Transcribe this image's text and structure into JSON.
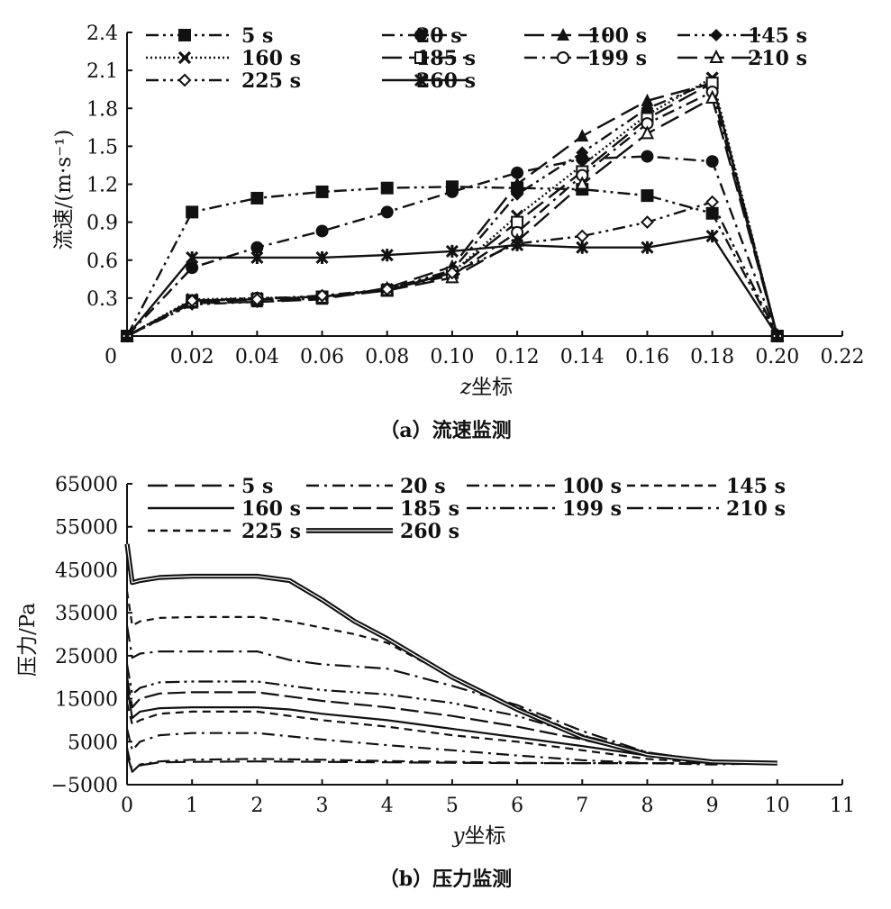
{
  "figure": {
    "caption_a": "（a）流速监测",
    "caption_b": "（b）压力监测"
  },
  "chart_data": [
    {
      "id": "a",
      "type": "line",
      "xlabel_var": "z",
      "xlabel_rest": "坐标",
      "ylabel": "流速/(m·s⁻¹)",
      "xlim": [
        0,
        0.22
      ],
      "ylim": [
        0,
        2.4
      ],
      "x_ticks": [
        0.02,
        0.04,
        0.06,
        0.08,
        0.1,
        0.12,
        0.14,
        0.16,
        0.18,
        0.2,
        0.22
      ],
      "x_tick_labels": [
        "0.02",
        "0.04",
        "0.06",
        "0.08",
        "0.10",
        "0.12",
        "0.14",
        "0.16",
        "0.18",
        "0.20",
        "0.22"
      ],
      "origin_label": "0",
      "y_ticks": [
        0.3,
        0.6,
        0.9,
        1.2,
        1.5,
        1.8,
        2.1,
        2.4
      ],
      "y_tick_labels": [
        "0.3",
        "0.6",
        "0.9",
        "1.2",
        "1.5",
        "1.8",
        "2.1",
        "2.4"
      ],
      "grid": false,
      "legend_position": "top",
      "x": [
        0,
        0.02,
        0.04,
        0.06,
        0.08,
        0.1,
        0.12,
        0.14,
        0.16,
        0.18,
        0.2
      ],
      "series": [
        {
          "name": "5 s",
          "marker": "square-filled",
          "dash": "dashdotdot",
          "values": [
            0,
            0.98,
            1.09,
            1.14,
            1.17,
            1.18,
            1.17,
            1.16,
            1.11,
            0.97,
            0
          ]
        },
        {
          "name": "20 s",
          "marker": "circle-filled",
          "dash": "dashdot",
          "values": [
            0,
            0.54,
            0.7,
            0.83,
            0.98,
            1.14,
            1.29,
            1.4,
            1.42,
            1.38,
            0
          ]
        },
        {
          "name": "100 s",
          "marker": "triangle-filled",
          "dash": "longdash",
          "values": [
            0,
            0.26,
            0.27,
            0.29,
            0.38,
            0.55,
            1.2,
            1.58,
            1.86,
            2.0,
            0
          ]
        },
        {
          "name": "145 s",
          "marker": "diamond-filled",
          "dash": "dashdotdot",
          "values": [
            0,
            0.25,
            0.27,
            0.3,
            0.37,
            0.52,
            1.12,
            1.45,
            1.8,
            2.01,
            0
          ]
        },
        {
          "name": "160 s",
          "marker": "x",
          "dash": "dotted",
          "values": [
            0,
            0.29,
            0.3,
            0.31,
            0.37,
            0.5,
            0.95,
            1.35,
            1.75,
            2.04,
            0
          ]
        },
        {
          "name": "185 s",
          "marker": "square-open",
          "dash": "longdash",
          "values": [
            0,
            0.28,
            0.29,
            0.31,
            0.36,
            0.5,
            0.9,
            1.3,
            1.72,
            2.0,
            0
          ]
        },
        {
          "name": "199 s",
          "marker": "circle-open",
          "dash": "dashdot",
          "values": [
            0,
            0.28,
            0.3,
            0.31,
            0.37,
            0.48,
            0.82,
            1.27,
            1.68,
            1.93,
            0
          ]
        },
        {
          "name": "210 s",
          "marker": "triangle-open",
          "dash": "longdash",
          "values": [
            0,
            0.27,
            0.29,
            0.3,
            0.36,
            0.46,
            0.75,
            1.2,
            1.6,
            1.88,
            0
          ]
        },
        {
          "name": "225 s",
          "marker": "diamond-open",
          "dash": "dashdotdot",
          "values": [
            0,
            0.28,
            0.29,
            0.32,
            0.37,
            0.5,
            0.73,
            0.79,
            0.9,
            1.06,
            0
          ]
        },
        {
          "name": "260 s",
          "marker": "star",
          "dash": "solid",
          "values": [
            0,
            0.62,
            0.62,
            0.62,
            0.64,
            0.67,
            0.72,
            0.7,
            0.7,
            0.79,
            0
          ]
        }
      ]
    },
    {
      "id": "b",
      "type": "line",
      "xlabel_var": "y",
      "xlabel_rest": "坐标",
      "ylabel": "压力/Pa",
      "xlim": [
        0,
        11
      ],
      "ylim": [
        -5000,
        65000
      ],
      "x_ticks": [
        0,
        1,
        2,
        3,
        4,
        5,
        6,
        7,
        8,
        9,
        10,
        11
      ],
      "x_tick_labels": [
        "0",
        "1",
        "2",
        "3",
        "4",
        "5",
        "6",
        "7",
        "8",
        "9",
        "10",
        "11"
      ],
      "y_ticks": [
        -5000,
        5000,
        15000,
        25000,
        35000,
        45000,
        55000,
        65000
      ],
      "y_tick_labels": [
        "−5000",
        "5000",
        "15000",
        "25000",
        "35000",
        "45000",
        "55000",
        "65000"
      ],
      "grid": false,
      "legend_position": "top",
      "series": [
        {
          "name": "5 s",
          "dash": "longdash",
          "x": [
            0,
            0.08,
            0.2,
            0.5,
            1,
            2,
            3,
            4,
            5,
            6,
            7,
            8,
            9,
            10
          ],
          "values": [
            2000,
            -2000,
            -500,
            200,
            300,
            400,
            300,
            200,
            100,
            0,
            0,
            0,
            0,
            0
          ]
        },
        {
          "name": "20 s",
          "dash": "dashdot",
          "x": [
            0,
            0.08,
            0.2,
            0.5,
            1,
            2,
            3,
            4,
            5,
            6,
            7,
            8,
            9,
            10
          ],
          "values": [
            3500,
            -2000,
            -300,
            400,
            800,
            1000,
            800,
            500,
            300,
            100,
            0,
            0,
            0,
            0
          ]
        },
        {
          "name": "100 s",
          "dash": "dashdot",
          "x": [
            0,
            0.08,
            0.2,
            0.5,
            1,
            2,
            3,
            4,
            5,
            6,
            7,
            8,
            9,
            10
          ],
          "values": [
            8000,
            3000,
            5000,
            6500,
            7000,
            7000,
            5500,
            4200,
            3000,
            1800,
            700,
            0,
            -300,
            0
          ]
        },
        {
          "name": "145 s",
          "dash": "dashed",
          "x": [
            0,
            0.08,
            0.2,
            0.5,
            1,
            2,
            3,
            4,
            5,
            6,
            7,
            8,
            9,
            10
          ],
          "values": [
            14000,
            9000,
            10000,
            11500,
            12000,
            12000,
            10000,
            8500,
            6500,
            5000,
            3000,
            1000,
            0,
            0
          ]
        },
        {
          "name": "160 s",
          "dash": "solid",
          "x": [
            0,
            0.08,
            0.2,
            0.5,
            1,
            2,
            2.5,
            3,
            4,
            5,
            6,
            7,
            8,
            9,
            10
          ],
          "values": [
            18000,
            10500,
            12000,
            12800,
            13000,
            13000,
            12500,
            11500,
            10000,
            8000,
            6000,
            4000,
            1800,
            300,
            0
          ]
        },
        {
          "name": "185 s",
          "dash": "longdash2",
          "x": [
            0,
            0.08,
            0.2,
            0.5,
            1,
            2,
            2.5,
            3,
            4,
            5,
            6,
            7,
            8,
            9,
            10
          ],
          "values": [
            20000,
            13000,
            15000,
            16200,
            16500,
            16500,
            15500,
            14500,
            13000,
            11000,
            8500,
            5500,
            2000,
            300,
            0
          ]
        },
        {
          "name": "199 s",
          "dash": "dashdotdot2",
          "x": [
            0,
            0.08,
            0.2,
            0.5,
            1,
            2,
            2.5,
            3,
            4,
            5,
            6,
            7,
            8,
            9,
            10
          ],
          "values": [
            23000,
            16000,
            17500,
            18800,
            19000,
            19000,
            18000,
            17000,
            16000,
            14000,
            11000,
            6500,
            2500,
            400,
            0
          ]
        },
        {
          "name": "210 s",
          "dash": "dashdot2",
          "x": [
            0,
            0.08,
            0.2,
            0.5,
            1,
            2,
            2.5,
            3,
            4,
            5,
            6,
            7,
            8,
            9,
            10
          ],
          "values": [
            32000,
            24500,
            25500,
            26000,
            26000,
            26000,
            24000,
            23000,
            22000,
            18000,
            13500,
            7500,
            2500,
            400,
            0
          ]
        },
        {
          "name": "225 s",
          "dash": "dashed2",
          "x": [
            0,
            0.08,
            0.2,
            0.5,
            1,
            2,
            2.5,
            3,
            3.5,
            4,
            5,
            6,
            7,
            8,
            9,
            10
          ],
          "values": [
            40000,
            32000,
            33000,
            33800,
            34000,
            34000,
            33000,
            31500,
            30000,
            28000,
            20000,
            13000,
            6500,
            2000,
            300,
            0
          ]
        },
        {
          "name": "260 s",
          "dash": "double",
          "x": [
            0,
            0.08,
            0.2,
            0.5,
            1,
            1.5,
            2,
            2.5,
            3,
            3.5,
            4,
            5,
            6,
            7,
            8,
            9,
            10
          ],
          "values": [
            51000,
            42000,
            42500,
            43200,
            43500,
            43500,
            43500,
            42500,
            38000,
            33000,
            29000,
            20000,
            12500,
            6000,
            2000,
            300,
            0
          ]
        }
      ]
    }
  ]
}
